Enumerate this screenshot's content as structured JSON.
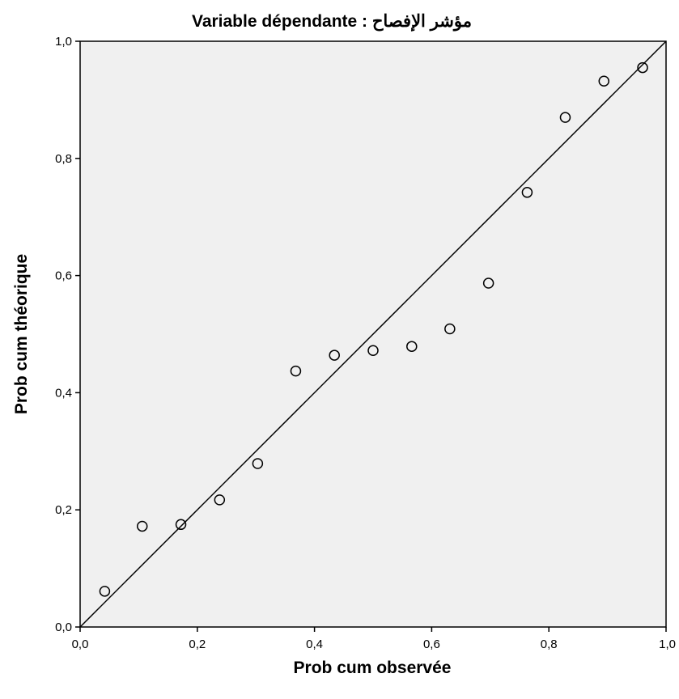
{
  "chart_data": {
    "type": "scatter",
    "title": "Variable dépendante : مؤشر الإفصاح",
    "xlabel": "Prob cum observée",
    "ylabel": "Prob cum théorique",
    "xlim": [
      0,
      1
    ],
    "ylim": [
      0,
      1
    ],
    "x_ticks": [
      "0,0",
      "0,2",
      "0,4",
      "0,6",
      "0,8",
      "1,0"
    ],
    "y_ticks": [
      "0,0",
      "0,2",
      "0,4",
      "0,6",
      "0,8",
      "1,0"
    ],
    "grid": false,
    "reference_line": {
      "from": [
        0,
        0
      ],
      "to": [
        1,
        1
      ]
    },
    "points": [
      {
        "x": 0.042,
        "y": 0.061
      },
      {
        "x": 0.106,
        "y": 0.172
      },
      {
        "x": 0.172,
        "y": 0.175
      },
      {
        "x": 0.238,
        "y": 0.217
      },
      {
        "x": 0.303,
        "y": 0.279
      },
      {
        "x": 0.368,
        "y": 0.437
      },
      {
        "x": 0.434,
        "y": 0.464
      },
      {
        "x": 0.5,
        "y": 0.472
      },
      {
        "x": 0.566,
        "y": 0.479
      },
      {
        "x": 0.631,
        "y": 0.509
      },
      {
        "x": 0.697,
        "y": 0.587
      },
      {
        "x": 0.763,
        "y": 0.742
      },
      {
        "x": 0.828,
        "y": 0.87
      },
      {
        "x": 0.894,
        "y": 0.932
      },
      {
        "x": 0.96,
        "y": 0.955
      }
    ],
    "colors": {
      "plot_background": "#f0f0f0",
      "marker": "#000000",
      "line": "#000000"
    }
  }
}
